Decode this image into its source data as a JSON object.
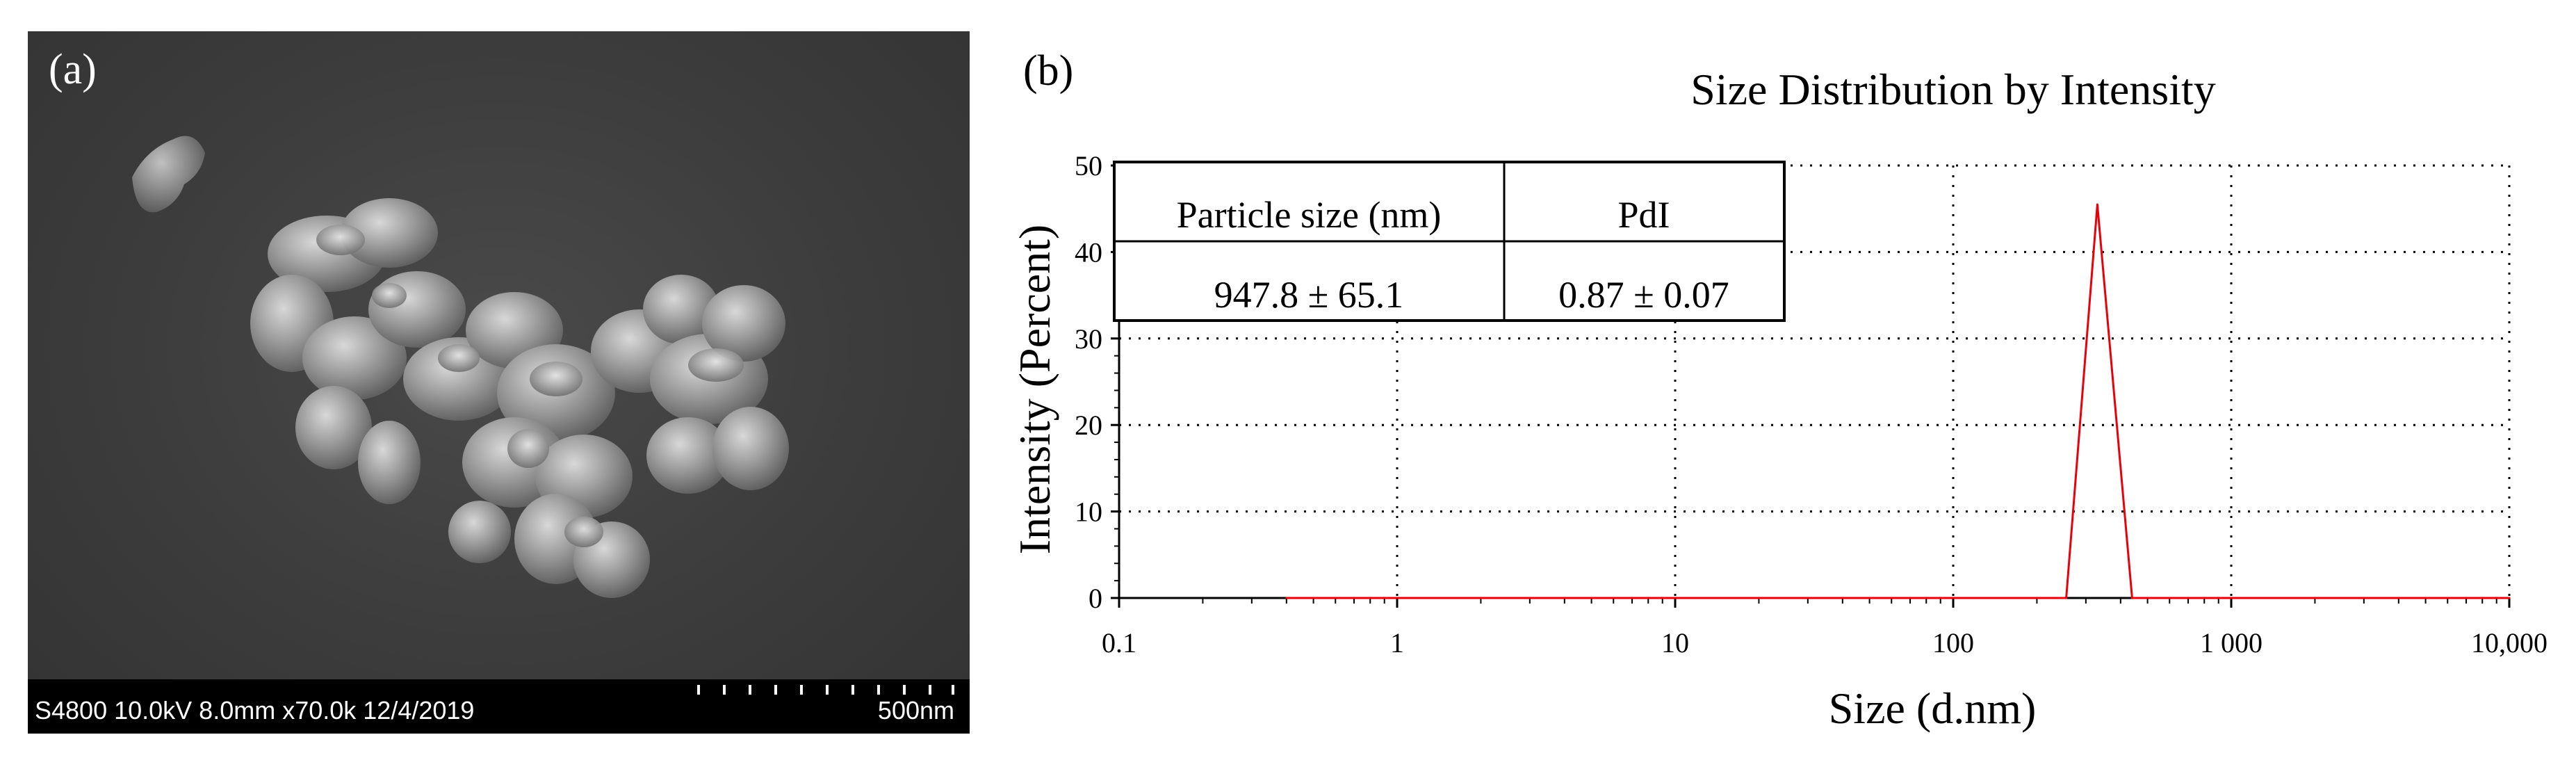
{
  "panel_a": {
    "label": "(a)",
    "info_text": "S4800 10.0kV 8.0mm x70.0k 12/4/2019",
    "scale_bar_text": "500nm"
  },
  "panel_b": {
    "label": "(b)"
  },
  "colors": {
    "series": "#e8000b",
    "axis": "#000000",
    "sem_background": "#3c3c3c"
  },
  "table": {
    "headers": [
      "Particle size (nm)",
      "PdI"
    ],
    "rows": [
      [
        "947.8 ± 65.1",
        "0.87 ± 0.07"
      ]
    ]
  },
  "chart_data": {
    "type": "line",
    "title": "Size Distribution by  Intensity",
    "xlabel": "Size (d.nm)",
    "ylabel": "Intensity (Percent)",
    "xscale": "log",
    "xlim": [
      0.1,
      10000
    ],
    "ylim": [
      0,
      50
    ],
    "x_ticks": [
      0.1,
      1,
      10,
      100,
      1000,
      10000
    ],
    "x_tick_labels": [
      "0.1",
      "1",
      "10",
      "100",
      "1 000",
      "10,000"
    ],
    "y_ticks": [
      0,
      10,
      20,
      30,
      40,
      50
    ],
    "y_tick_labels": [
      "0",
      "10",
      "20",
      "30",
      "40",
      "50"
    ],
    "grid": true,
    "series": [
      {
        "name": "Intensity",
        "x": [
          0.4,
          255,
          330,
          440,
          10000
        ],
        "y": [
          0,
          0,
          45.5,
          0,
          0
        ]
      }
    ]
  }
}
